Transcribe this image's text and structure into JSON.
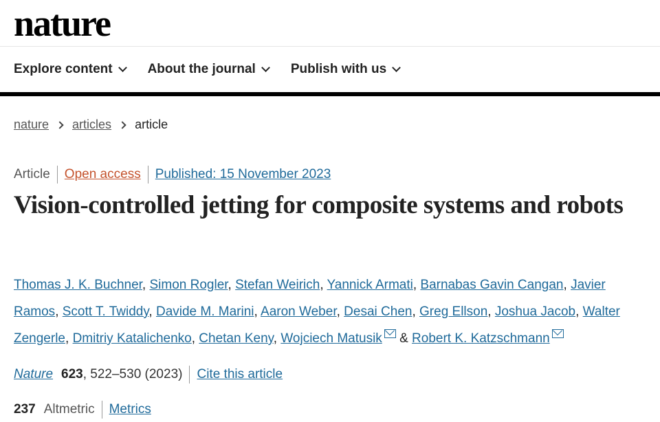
{
  "header": {
    "logo": "nature"
  },
  "nav": [
    {
      "label": "Explore content"
    },
    {
      "label": "About the journal"
    },
    {
      "label": "Publish with us"
    }
  ],
  "breadcrumb": [
    "nature",
    "articles",
    "article"
  ],
  "meta": {
    "type": "Article",
    "access": "Open access",
    "published": "Published: 15 November 2023"
  },
  "title": "Vision-controlled jetting for composite systems and robots",
  "authors": [
    {
      "name": "Thomas J. K. Buchner"
    },
    {
      "name": "Simon Rogler"
    },
    {
      "name": "Stefan Weirich"
    },
    {
      "name": "Yannick Armati"
    },
    {
      "name": "Barnabas Gavin Cangan"
    },
    {
      "name": "Javier Ramos"
    },
    {
      "name": "Scott T. Twiddy"
    },
    {
      "name": "Davide M. Marini"
    },
    {
      "name": "Aaron Weber"
    },
    {
      "name": "Desai Chen"
    },
    {
      "name": "Greg Ellson"
    },
    {
      "name": "Joshua Jacob"
    },
    {
      "name": "Walter Zengerle"
    },
    {
      "name": "Dmitriy Katalichenko"
    },
    {
      "name": "Chetan Keny"
    },
    {
      "name": "Wojciech Matusik",
      "email": true
    },
    {
      "name": "Robert K. Katzschmann",
      "email": true
    }
  ],
  "authors_conjunction": "&",
  "citation": {
    "journal": "Nature",
    "volume": "623",
    "pages": ", 522–530 (2023)",
    "cite_link": "Cite this article"
  },
  "altmetric": {
    "score": "237",
    "label": "Altmetric",
    "metrics_link": "Metrics"
  },
  "colors": {
    "link": "#1f6a9a",
    "open_access": "#c4532d"
  }
}
